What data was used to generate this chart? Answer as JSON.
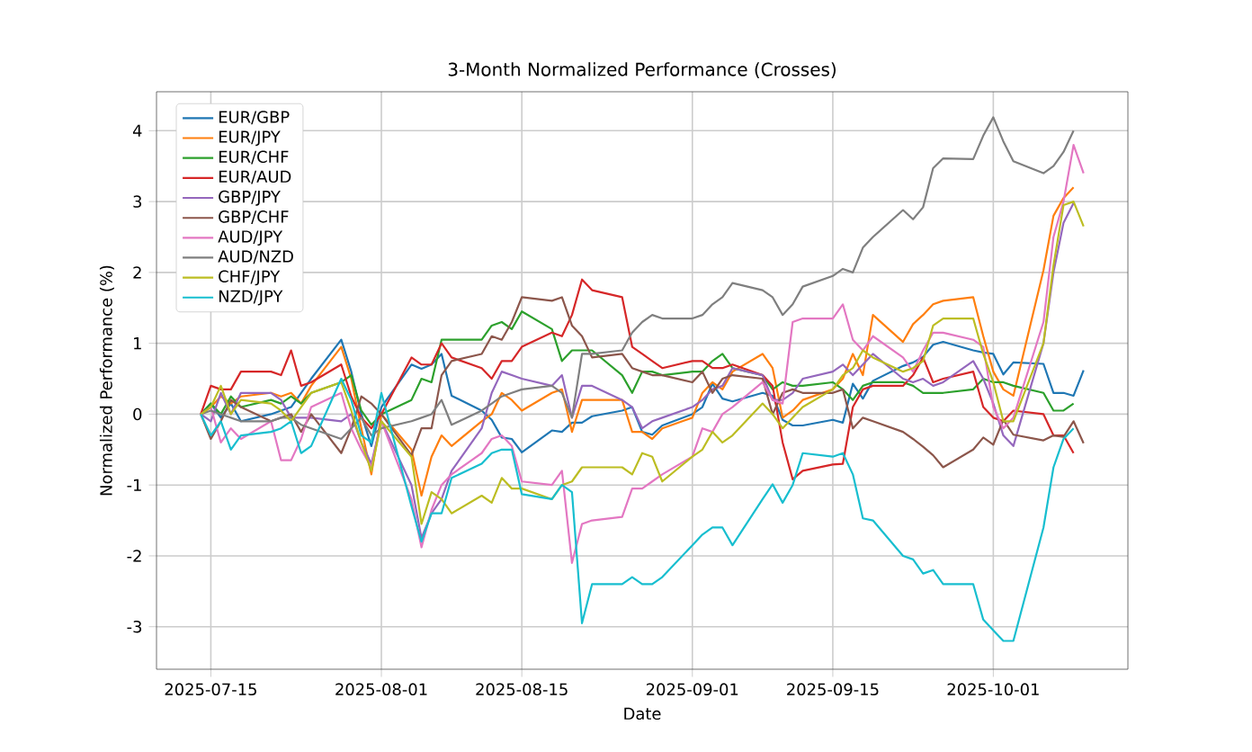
{
  "chart_data": {
    "type": "line",
    "title": "3-Month Normalized Performance (Crosses)",
    "xlabel": "Date",
    "ylabel": "Normalized Performance (%)",
    "x": [
      "2025-07-14",
      "2025-07-15",
      "2025-07-16",
      "2025-07-17",
      "2025-07-18",
      "2025-07-21",
      "2025-07-22",
      "2025-07-23",
      "2025-07-24",
      "2025-07-25",
      "2025-07-28",
      "2025-07-29",
      "2025-07-30",
      "2025-07-31",
      "2025-08-01",
      "2025-08-04",
      "2025-08-05",
      "2025-08-06",
      "2025-08-07",
      "2025-08-08",
      "2025-08-11",
      "2025-08-12",
      "2025-08-13",
      "2025-08-14",
      "2025-08-15",
      "2025-08-18",
      "2025-08-19",
      "2025-08-20",
      "2025-08-21",
      "2025-08-22",
      "2025-08-25",
      "2025-08-26",
      "2025-08-27",
      "2025-08-28",
      "2025-08-29",
      "2025-09-01",
      "2025-09-02",
      "2025-09-03",
      "2025-09-04",
      "2025-09-05",
      "2025-09-08",
      "2025-09-09",
      "2025-09-10",
      "2025-09-11",
      "2025-09-12",
      "2025-09-15",
      "2025-09-16",
      "2025-09-17",
      "2025-09-18",
      "2025-09-19",
      "2025-09-22",
      "2025-09-23",
      "2025-09-24",
      "2025-09-25",
      "2025-09-26",
      "2025-09-29",
      "2025-09-30",
      "2025-10-01",
      "2025-10-02",
      "2025-10-03",
      "2025-10-06",
      "2025-10-07",
      "2025-10-08",
      "2025-10-09",
      "2025-10-10"
    ],
    "xlim": [
      "2025-07-09T14:00",
      "2025-10-14T10:00"
    ],
    "xticks": [
      "2025-07-15",
      "2025-08-01",
      "2025-08-15",
      "2025-09-01",
      "2025-09-15",
      "2025-10-01"
    ],
    "ylim": [
      -3.6,
      4.55
    ],
    "yticks": [
      -3,
      -2,
      -1,
      0,
      1,
      2,
      3,
      4
    ],
    "grid": true,
    "legend": "top left",
    "series": [
      {
        "name": "EUR/GBP",
        "color": "#1f77b4",
        "values": [
          0,
          0.15,
          -0.05,
          0.15,
          -0.1,
          0,
          0.05,
          0.1,
          0.3,
          0.5,
          1.05,
          0.6,
          0,
          -0.45,
          0.1,
          0.7,
          0.64,
          0.7,
          0.85,
          0.26,
          0.05,
          -0.08,
          -0.33,
          -0.35,
          -0.54,
          -0.23,
          -0.25,
          -0.12,
          -0.12,
          -0.03,
          0.05,
          0.1,
          -0.25,
          -0.29,
          -0.16,
          0,
          0.1,
          0.43,
          0.22,
          0.18,
          0.3,
          0.26,
          -0.08,
          -0.16,
          -0.16,
          -0.08,
          -0.12,
          0.43,
          0.22,
          0.47,
          0.68,
          0.73,
          0.81,
          0.98,
          1.02,
          0.9,
          0.87,
          0.85,
          0.56,
          0.73,
          0.71,
          0.3,
          0.3,
          0.26,
          0.62
        ]
      },
      {
        "name": "EUR/JPY",
        "color": "#ff7f0e",
        "values": [
          0,
          0.1,
          0.25,
          0.15,
          0.25,
          0.3,
          0.25,
          0.3,
          0.15,
          0.4,
          0.95,
          0.5,
          -0.2,
          -0.85,
          0,
          -0.5,
          -1.15,
          -0.6,
          -0.3,
          -0.45,
          -0.1,
          0,
          0.3,
          0.2,
          0.05,
          0.3,
          0.35,
          -0.25,
          0.2,
          0.2,
          0.2,
          -0.25,
          -0.25,
          -0.35,
          -0.2,
          -0.05,
          0.3,
          0.45,
          0.35,
          0.6,
          0.85,
          0.65,
          -0.05,
          0.05,
          0.2,
          0.35,
          0.5,
          0.85,
          0.55,
          1.4,
          1.02,
          1.27,
          1.4,
          1.55,
          1.6,
          1.65,
          1.1,
          0.6,
          0.35,
          0.26,
          2.03,
          2.8,
          3.05,
          3.2,
          null
        ]
      },
      {
        "name": "EUR/CHF",
        "color": "#2ca02c",
        "values": [
          0,
          0.15,
          0,
          0.25,
          0.1,
          0.2,
          0.15,
          0.25,
          0.15,
          0.3,
          0.45,
          0.55,
          0.05,
          -0.15,
          0,
          0.2,
          0.5,
          0.45,
          1.05,
          1.05,
          1.05,
          1.25,
          1.3,
          1.2,
          1.45,
          1.2,
          0.75,
          0.9,
          0.9,
          0.9,
          0.55,
          0.3,
          0.6,
          0.6,
          0.55,
          0.6,
          0.6,
          0.75,
          0.85,
          0.65,
          0.55,
          0.35,
          0.45,
          0.4,
          0.4,
          0.45,
          0.35,
          0.2,
          0.4,
          0.45,
          0.45,
          0.4,
          0.3,
          0.3,
          0.3,
          0.35,
          0.5,
          0.45,
          0.45,
          0.4,
          0.3,
          0.05,
          0.05,
          0.15,
          null
        ]
      },
      {
        "name": "EUR/AUD",
        "color": "#d62728",
        "values": [
          0,
          0.4,
          0.35,
          0.35,
          0.6,
          0.6,
          0.55,
          0.9,
          0.4,
          0.45,
          0.7,
          0.25,
          -0.05,
          -0.2,
          0,
          0.8,
          0.7,
          0.7,
          1,
          0.8,
          0.65,
          0.5,
          0.75,
          0.75,
          0.95,
          1.15,
          1.1,
          1.4,
          1.9,
          1.75,
          1.65,
          0.95,
          0.85,
          0.75,
          0.65,
          0.75,
          0.75,
          0.65,
          0.65,
          0.7,
          0.55,
          0.4,
          -0.4,
          -0.92,
          -0.8,
          -0.71,
          -0.7,
          0.1,
          0.35,
          0.4,
          0.4,
          0.55,
          0.8,
          0.45,
          0.5,
          0.6,
          0.1,
          -0.05,
          -0.1,
          0.05,
          0,
          -0.3,
          -0.3,
          -0.55,
          null
        ]
      },
      {
        "name": "GBP/JPY",
        "color": "#9467bd",
        "values": [
          0,
          -0.1,
          0.3,
          0,
          0.3,
          0.3,
          0.2,
          -0.05,
          -0.05,
          -0.05,
          -0.1,
          0,
          -0.4,
          -0.7,
          -0.1,
          -1,
          -1.75,
          -1.4,
          -1.2,
          -0.8,
          -0.2,
          0.3,
          0.6,
          0.55,
          0.5,
          0.4,
          0.55,
          -0.05,
          0.4,
          0.4,
          0.2,
          0.1,
          -0.2,
          -0.1,
          -0.05,
          0.1,
          0.2,
          0.35,
          0.4,
          0.65,
          0.55,
          0.2,
          0.2,
          0.3,
          0.5,
          0.6,
          0.7,
          0.55,
          0.7,
          0.85,
          0.5,
          0.45,
          0.5,
          0.4,
          0.45,
          0.75,
          0.5,
          0.15,
          -0.3,
          -0.45,
          1,
          2,
          2.7,
          2.98,
          null
        ]
      },
      {
        "name": "GBP/CHF",
        "color": "#8c564b",
        "values": [
          0,
          -0.35,
          -0.1,
          0.2,
          0.1,
          -0.1,
          -0.05,
          0,
          -0.25,
          0,
          -0.55,
          -0.2,
          0.25,
          0.15,
          0,
          -0.58,
          -0.2,
          -0.2,
          0.55,
          0.75,
          0.85,
          1.1,
          1.05,
          1.3,
          1.65,
          1.6,
          1.65,
          1.25,
          1.1,
          0.8,
          0.85,
          0.65,
          0.6,
          0.55,
          0.55,
          0.45,
          0.6,
          0.3,
          0.5,
          0.55,
          0.5,
          0,
          0.3,
          0.35,
          0.3,
          0.3,
          0.35,
          -0.2,
          -0.05,
          -0.1,
          -0.25,
          -0.35,
          -0.46,
          -0.58,
          -0.75,
          -0.5,
          -0.33,
          -0.43,
          -0.08,
          -0.29,
          -0.37,
          -0.3,
          -0.32,
          -0.1,
          -0.41
        ]
      },
      {
        "name": "AUD/JPY",
        "color": "#e377c2",
        "values": [
          0,
          0.1,
          -0.4,
          -0.2,
          -0.35,
          -0.1,
          -0.65,
          -0.65,
          -0.35,
          0.1,
          0.3,
          -0.2,
          -0.5,
          -0.75,
          -0.1,
          -1.2,
          -1.88,
          -1.35,
          -1,
          -0.85,
          -0.55,
          -0.35,
          -0.3,
          -0.45,
          -0.95,
          -1,
          -0.8,
          -2.1,
          -1.55,
          -1.5,
          -1.45,
          -1.05,
          -1.05,
          -0.95,
          -0.85,
          -0.6,
          -0.2,
          -0.25,
          0,
          0.1,
          0.45,
          0.2,
          0.15,
          1.3,
          1.35,
          1.35,
          1.55,
          1.05,
          0.9,
          1.1,
          0.8,
          0.6,
          0.9,
          1.15,
          1.15,
          1.05,
          0.95,
          0.1,
          -0.2,
          -0.05,
          1.3,
          2.5,
          3,
          3.8,
          3.4
        ]
      },
      {
        "name": "AUD/NZD",
        "color": "#7f7f7f",
        "values": [
          0,
          0.05,
          0,
          -0.05,
          -0.1,
          -0.1,
          -0.05,
          -0.05,
          -0.15,
          -0.2,
          -0.35,
          -0.2,
          -0.05,
          -0.3,
          -0.2,
          -0.1,
          -0.05,
          0,
          0.2,
          -0.15,
          0.05,
          0.15,
          0.25,
          0.3,
          0.35,
          0.4,
          0.3,
          -0.05,
          0.85,
          0.85,
          0.9,
          1.15,
          1.3,
          1.4,
          1.35,
          1.35,
          1.4,
          1.55,
          1.65,
          1.85,
          1.75,
          1.65,
          1.4,
          1.55,
          1.8,
          1.95,
          2.05,
          2,
          2.35,
          2.5,
          2.88,
          2.75,
          2.92,
          3.47,
          3.61,
          3.6,
          3.93,
          4.19,
          3.85,
          3.57,
          3.4,
          3.5,
          3.7,
          4,
          null
        ]
      },
      {
        "name": "CHF/JPY",
        "color": "#bcbd22",
        "values": [
          0,
          0.1,
          0.4,
          0,
          0.2,
          0.15,
          0.05,
          -0.1,
          0.1,
          0.3,
          0.45,
          0.05,
          -0.4,
          -0.8,
          -0.1,
          -0.6,
          -1.55,
          -1.1,
          -1.2,
          -1.4,
          -1.15,
          -1.25,
          -0.9,
          -1.05,
          -1.05,
          -1.2,
          -1,
          -0.95,
          -0.75,
          -0.75,
          -0.75,
          -0.85,
          -0.55,
          -0.6,
          -0.95,
          -0.6,
          -0.5,
          -0.25,
          -0.4,
          -0.3,
          0.15,
          0,
          -0.2,
          -0.05,
          0.1,
          0.35,
          0.55,
          0.65,
          0.9,
          0.8,
          0.6,
          0.65,
          0.75,
          1.25,
          1.35,
          1.35,
          0.85,
          0.45,
          -0.1,
          -0.1,
          1,
          2.1,
          2.95,
          3,
          2.65
        ]
      },
      {
        "name": "NZD/JPY",
        "color": "#17becf",
        "values": [
          0,
          -0.3,
          -0.1,
          -0.5,
          -0.3,
          -0.25,
          -0.2,
          -0.1,
          -0.55,
          -0.45,
          0.5,
          0.2,
          -0.3,
          -0.4,
          0.3,
          -1.3,
          -1.8,
          -1.4,
          -1.4,
          -0.9,
          -0.7,
          -0.55,
          -0.5,
          -0.5,
          -1.13,
          -1.2,
          -1,
          -1.1,
          -2.95,
          -2.4,
          -2.4,
          -2.3,
          -2.4,
          -2.4,
          -2.3,
          -1.85,
          -1.7,
          -1.6,
          -1.6,
          -1.85,
          -1.2,
          -0.99,
          -1.25,
          -1,
          -0.55,
          -0.6,
          -0.55,
          -0.85,
          -1.47,
          -1.5,
          -2,
          -2.05,
          -2.25,
          -2.2,
          -2.4,
          -2.4,
          -2.9,
          -3.05,
          -3.2,
          -3.2,
          -1.6,
          -0.75,
          -0.35,
          -0.2,
          null
        ]
      }
    ]
  }
}
